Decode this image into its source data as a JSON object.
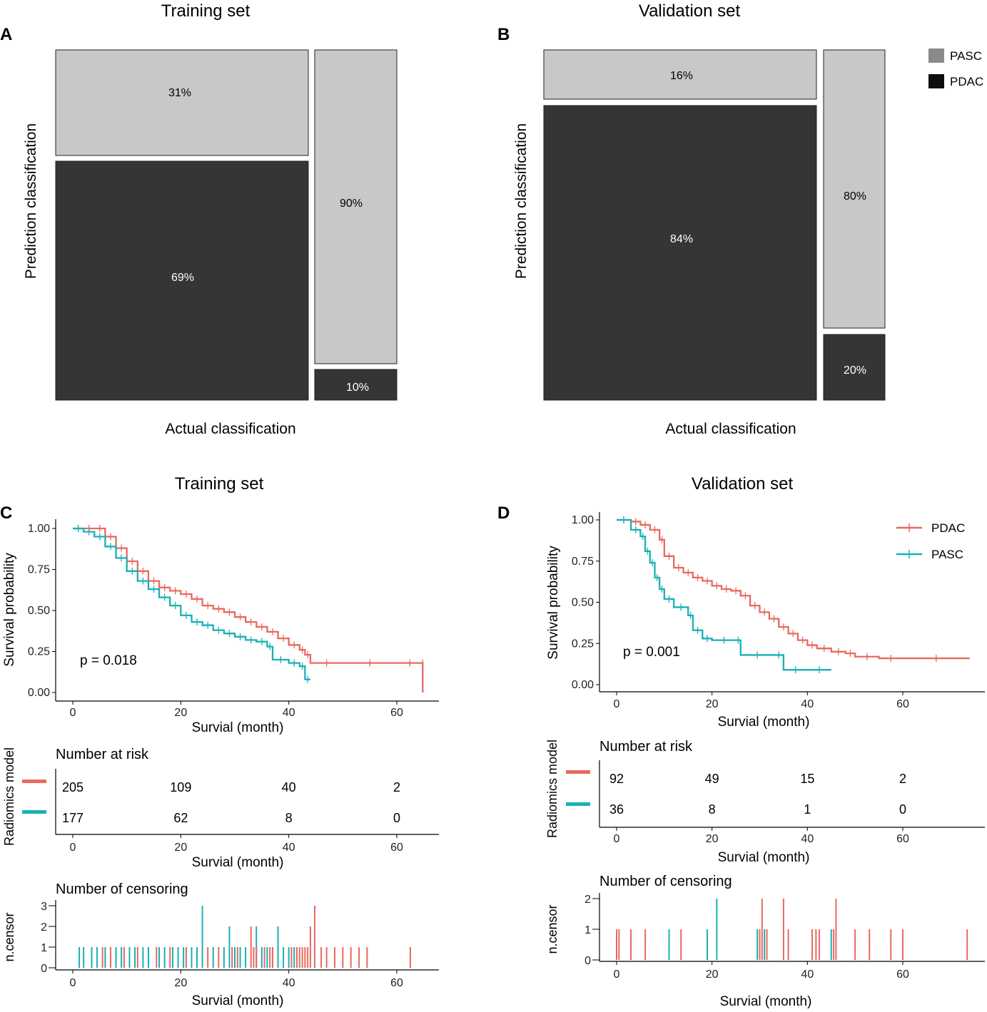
{
  "panels": {
    "A": "A",
    "B": "B",
    "C": "C",
    "D": "D"
  },
  "colors": {
    "light": "#c8c8c8",
    "dark": "#353535",
    "pdac": "#e8695f",
    "pasc": "#1ab0b5"
  },
  "mosaic_legend": {
    "pasc": "PASC",
    "pdac": "PDAC"
  },
  "km_legend": {
    "pdac": "PDAC",
    "pasc": "PASC"
  },
  "chart_data": [
    {
      "id": "A",
      "type": "mosaic",
      "title": "Training set",
      "xlabel": "Actual classification",
      "ylabel": "Prediction classification",
      "columns": [
        {
          "actual": "PDAC",
          "cells": [
            {
              "predicted": "PASC",
              "label": "31%",
              "value": 31
            },
            {
              "predicted": "PDAC",
              "label": "69%",
              "value": 69
            }
          ]
        },
        {
          "actual": "PASC",
          "cells": [
            {
              "predicted": "PASC",
              "label": "90%",
              "value": 90
            },
            {
              "predicted": "PDAC",
              "label": "10%",
              "value": 10
            }
          ]
        }
      ]
    },
    {
      "id": "B",
      "type": "mosaic",
      "title": "Validation set",
      "xlabel": "Actual classification",
      "ylabel": "Prediction classification",
      "columns": [
        {
          "actual": "PDAC",
          "cells": [
            {
              "predicted": "PASC",
              "label": "16%",
              "value": 16
            },
            {
              "predicted": "PDAC",
              "label": "84%",
              "value": 84
            }
          ]
        },
        {
          "actual": "PASC",
          "cells": [
            {
              "predicted": "PASC",
              "label": "80%",
              "value": 80
            },
            {
              "predicted": "PDAC",
              "label": "20%",
              "value": 20
            }
          ]
        }
      ]
    },
    {
      "id": "C",
      "type": "line",
      "title": "Training set",
      "xlabel": "Survial (month)",
      "ylabel": "Survival probability",
      "xlim": [
        0,
        65
      ],
      "ylim": [
        0,
        1
      ],
      "xticks": [
        "0",
        "20",
        "40",
        "60"
      ],
      "yticks": [
        "0.00",
        "0.25",
        "0.50",
        "0.75",
        "1.00"
      ],
      "pvalue": "p = 0.018",
      "series": [
        {
          "name": "PDAC",
          "x": [
            0,
            2,
            4,
            6,
            8,
            10,
            12,
            14,
            16,
            18,
            20,
            22,
            24,
            26,
            28,
            30,
            32,
            34,
            36,
            38,
            40,
            42,
            43,
            44,
            50,
            60,
            64.8,
            64.8
          ],
          "y": [
            1.0,
            1.0,
            1.0,
            0.95,
            0.88,
            0.8,
            0.74,
            0.68,
            0.64,
            0.62,
            0.6,
            0.57,
            0.53,
            0.51,
            0.49,
            0.46,
            0.43,
            0.4,
            0.37,
            0.33,
            0.29,
            0.26,
            0.23,
            0.18,
            0.18,
            0.18,
            0.18,
            0.0
          ]
        },
        {
          "name": "PASC",
          "x": [
            0,
            2,
            4,
            6,
            8,
            10,
            12,
            14,
            16,
            18,
            20,
            22,
            24,
            26,
            28,
            30,
            32,
            34,
            36,
            37,
            40,
            42,
            43,
            44
          ],
          "y": [
            1.0,
            0.98,
            0.95,
            0.89,
            0.82,
            0.74,
            0.68,
            0.63,
            0.58,
            0.53,
            0.47,
            0.43,
            0.41,
            0.38,
            0.36,
            0.34,
            0.32,
            0.31,
            0.28,
            0.2,
            0.18,
            0.16,
            0.08,
            0.08
          ]
        }
      ],
      "risk_table": {
        "title": "Number at risk",
        "ylabel": "Radiomics model",
        "times": [
          "0",
          "20",
          "40",
          "60"
        ],
        "rows": [
          {
            "name": "PDAC",
            "values": [
              "205",
              "109",
              "40",
              "2"
            ]
          },
          {
            "name": "PASC",
            "values": [
              "177",
              "62",
              "8",
              "0"
            ]
          }
        ]
      },
      "censoring": {
        "title": "Number of censoring",
        "ylabel": "n.censor",
        "yticks": [
          "0",
          "1",
          "2",
          "3"
        ],
        "pdac": [
          [
            5.5,
            1
          ],
          [
            7,
            1
          ],
          [
            9.5,
            1
          ],
          [
            12,
            1
          ],
          [
            15.5,
            1
          ],
          [
            18,
            1
          ],
          [
            21,
            1
          ],
          [
            25,
            1
          ],
          [
            27,
            1
          ],
          [
            29.5,
            1
          ],
          [
            30.5,
            1
          ],
          [
            33,
            2
          ],
          [
            33.5,
            1
          ],
          [
            34,
            1
          ],
          [
            35.5,
            1
          ],
          [
            36.5,
            1
          ],
          [
            37,
            1
          ],
          [
            40.5,
            1
          ],
          [
            41.5,
            1
          ],
          [
            42,
            1
          ],
          [
            42.5,
            1
          ],
          [
            43,
            1
          ],
          [
            43.5,
            1
          ],
          [
            44,
            2
          ],
          [
            44.8,
            3
          ],
          [
            46,
            1
          ],
          [
            47,
            1
          ],
          [
            48.5,
            1
          ],
          [
            50,
            1
          ],
          [
            51.5,
            1
          ],
          [
            53,
            1
          ],
          [
            54.5,
            1
          ],
          [
            62.5,
            1
          ]
        ],
        "pasc": [
          [
            1.2,
            1
          ],
          [
            2,
            1
          ],
          [
            3.5,
            1
          ],
          [
            4.5,
            1
          ],
          [
            6,
            1
          ],
          [
            8,
            1
          ],
          [
            9,
            1
          ],
          [
            10.5,
            1
          ],
          [
            11.5,
            1
          ],
          [
            13,
            1
          ],
          [
            14,
            1
          ],
          [
            16,
            1
          ],
          [
            17,
            1
          ],
          [
            18.5,
            1
          ],
          [
            19.5,
            1
          ],
          [
            20.5,
            1
          ],
          [
            22,
            1
          ],
          [
            23,
            1
          ],
          [
            24,
            3
          ],
          [
            26,
            1
          ],
          [
            28,
            1
          ],
          [
            29,
            2
          ],
          [
            30,
            1
          ],
          [
            31,
            1
          ],
          [
            32,
            1
          ],
          [
            34,
            2
          ],
          [
            35,
            1
          ],
          [
            36,
            1
          ],
          [
            37,
            1
          ],
          [
            38,
            2
          ],
          [
            39,
            1
          ],
          [
            40,
            1
          ],
          [
            41,
            1
          ]
        ]
      }
    },
    {
      "id": "D",
      "type": "line",
      "title": "Validation set",
      "xlabel": "Survial (month)",
      "ylabel": "Survival probability",
      "xlim": [
        0,
        75
      ],
      "ylim": [
        0,
        1
      ],
      "xticks": [
        "0",
        "20",
        "40",
        "60"
      ],
      "yticks": [
        "0.00",
        "0.25",
        "0.50",
        "0.75",
        "1.00"
      ],
      "pvalue": "p = 0.001",
      "series": [
        {
          "name": "PDAC",
          "x": [
            0,
            3,
            5,
            7,
            9,
            10,
            12,
            14,
            16,
            18,
            20,
            22,
            24,
            26,
            28,
            30,
            32,
            34,
            36,
            38,
            40,
            42,
            45,
            48,
            50,
            55,
            60,
            74
          ],
          "y": [
            1.0,
            0.99,
            0.97,
            0.94,
            0.88,
            0.78,
            0.71,
            0.68,
            0.65,
            0.63,
            0.6,
            0.58,
            0.57,
            0.54,
            0.48,
            0.44,
            0.4,
            0.35,
            0.31,
            0.27,
            0.24,
            0.22,
            0.2,
            0.19,
            0.17,
            0.16,
            0.16,
            0.16
          ]
        },
        {
          "name": "PASC",
          "x": [
            0,
            3,
            5,
            6,
            7,
            8,
            9,
            10,
            12,
            15,
            16,
            18,
            20,
            25,
            26,
            33,
            35,
            40,
            45
          ],
          "y": [
            1.0,
            0.94,
            0.9,
            0.81,
            0.74,
            0.65,
            0.58,
            0.52,
            0.47,
            0.42,
            0.33,
            0.28,
            0.27,
            0.27,
            0.18,
            0.18,
            0.09,
            0.09,
            0.09
          ]
        }
      ],
      "risk_table": {
        "title": "Number at risk",
        "ylabel": "Radiomics model",
        "times": [
          "0",
          "20",
          "40",
          "60"
        ],
        "rows": [
          {
            "name": "PDAC",
            "values": [
              "92",
              "49",
              "15",
              "2"
            ]
          },
          {
            "name": "PASC",
            "values": [
              "36",
              "8",
              "1",
              "0"
            ]
          }
        ]
      },
      "censoring": {
        "title": "Number of censoring",
        "ylabel": "n.censor",
        "yticks": [
          "0",
          "1",
          "2"
        ],
        "pdac": [
          [
            0,
            1
          ],
          [
            0.5,
            1
          ],
          [
            3,
            1
          ],
          [
            6,
            1
          ],
          [
            13.5,
            1
          ],
          [
            30,
            1
          ],
          [
            30.5,
            2
          ],
          [
            31.5,
            1
          ],
          [
            35,
            2
          ],
          [
            36,
            1
          ],
          [
            41,
            1
          ],
          [
            41.8,
            1
          ],
          [
            42.5,
            1
          ],
          [
            45.5,
            1
          ],
          [
            46,
            2
          ],
          [
            50,
            1
          ],
          [
            53,
            1
          ],
          [
            57.5,
            1
          ],
          [
            60,
            1
          ],
          [
            73.5,
            1
          ]
        ],
        "pasc": [
          [
            11,
            1
          ],
          [
            19,
            1
          ],
          [
            21,
            2
          ],
          [
            29.5,
            1
          ],
          [
            30,
            1
          ],
          [
            31,
            1
          ],
          [
            45,
            1
          ]
        ]
      }
    }
  ]
}
